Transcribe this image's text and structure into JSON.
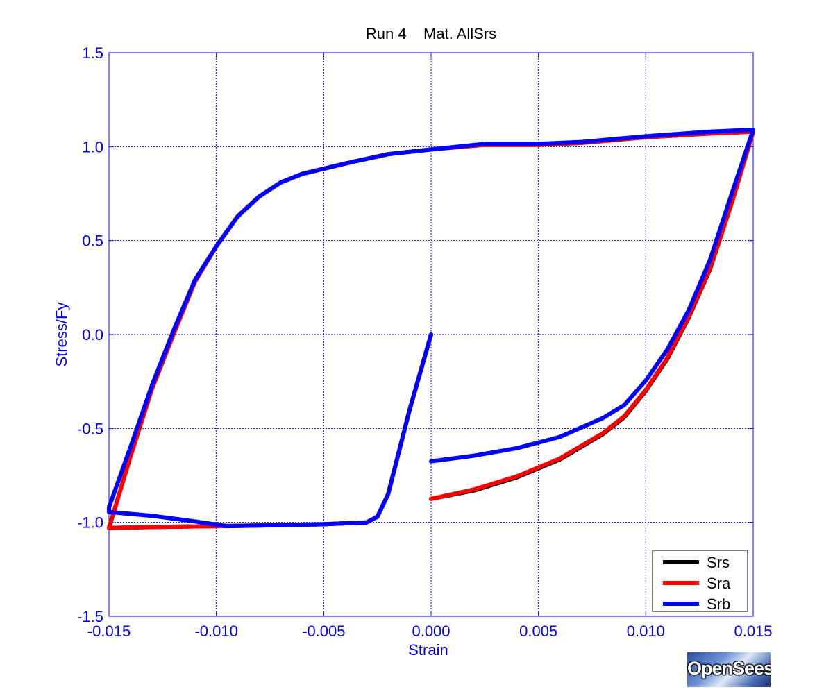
{
  "chart_data": {
    "type": "line",
    "title": "Run 4    Mat. AllSrs",
    "xlabel": "Strain",
    "ylabel": "Stress/Fy",
    "xlim": [
      -0.015,
      0.015
    ],
    "ylim": [
      -1.5,
      1.5
    ],
    "xticks": [
      -0.015,
      -0.01,
      -0.005,
      0.0,
      0.005,
      0.01,
      0.015
    ],
    "xtick_labels": [
      "-0.015",
      "-0.010",
      "-0.005",
      "0.000",
      "0.005",
      "0.010",
      "0.015"
    ],
    "yticks": [
      -1.5,
      -1.0,
      -0.5,
      0.0,
      0.5,
      1.0,
      1.5
    ],
    "ytick_labels": [
      "-1.5",
      "-1.0",
      "-0.5",
      "0.0",
      "0.5",
      "1.0",
      "1.5"
    ],
    "grid": true,
    "legend_position": "bottom-right",
    "colors": {
      "axis": "#0000ff",
      "grid": "#0000ff"
    },
    "series": [
      {
        "name": "Srs",
        "color": "#000000",
        "points": [
          [
            0.0,
            -0.875
          ],
          [
            0.002,
            -0.83
          ],
          [
            0.004,
            -0.76
          ],
          [
            0.006,
            -0.665
          ],
          [
            0.008,
            -0.53
          ],
          [
            0.009,
            -0.44
          ],
          [
            0.01,
            -0.3
          ],
          [
            0.011,
            -0.13
          ],
          [
            0.012,
            0.09
          ],
          [
            0.013,
            0.35
          ],
          [
            0.014,
            0.7
          ],
          [
            0.015,
            1.08
          ],
          [
            0.013,
            1.07
          ],
          [
            0.01,
            1.05
          ],
          [
            0.007,
            1.02
          ],
          [
            0.005,
            1.01
          ],
          [
            0.0025,
            1.01
          ],
          [
            0.0,
            0.985
          ],
          [
            -0.002,
            0.96
          ],
          [
            -0.004,
            0.91
          ],
          [
            -0.006,
            0.855
          ],
          [
            -0.007,
            0.81
          ],
          [
            -0.008,
            0.735
          ],
          [
            -0.009,
            0.63
          ],
          [
            -0.01,
            0.47
          ],
          [
            -0.011,
            0.28
          ],
          [
            -0.012,
            0.0
          ],
          [
            -0.013,
            -0.29
          ],
          [
            -0.014,
            -0.65
          ],
          [
            -0.015,
            -1.03
          ],
          [
            -0.013,
            -1.025
          ],
          [
            -0.01,
            -1.02
          ],
          [
            -0.007,
            -1.015
          ],
          [
            -0.005,
            -1.01
          ],
          [
            -0.003,
            -1.0
          ],
          [
            -0.0025,
            -0.97
          ],
          [
            -0.002,
            -0.85
          ],
          [
            -0.001,
            -0.4
          ],
          [
            0.0,
            0.0
          ]
        ]
      },
      {
        "name": "Sra",
        "color": "#ff0000",
        "points": [
          [
            0.0,
            -0.875
          ],
          [
            0.002,
            -0.825
          ],
          [
            0.004,
            -0.755
          ],
          [
            0.006,
            -0.66
          ],
          [
            0.008,
            -0.525
          ],
          [
            0.009,
            -0.435
          ],
          [
            0.01,
            -0.295
          ],
          [
            0.011,
            -0.125
          ],
          [
            0.012,
            0.095
          ],
          [
            0.013,
            0.355
          ],
          [
            0.014,
            0.7
          ],
          [
            0.015,
            1.08
          ],
          [
            0.013,
            1.07
          ],
          [
            0.01,
            1.05
          ],
          [
            0.007,
            1.02
          ],
          [
            0.005,
            1.01
          ],
          [
            0.0025,
            1.01
          ],
          [
            0.0,
            0.985
          ],
          [
            -0.002,
            0.96
          ],
          [
            -0.004,
            0.91
          ],
          [
            -0.006,
            0.855
          ],
          [
            -0.007,
            0.81
          ],
          [
            -0.008,
            0.735
          ],
          [
            -0.009,
            0.63
          ],
          [
            -0.01,
            0.47
          ],
          [
            -0.011,
            0.28
          ],
          [
            -0.012,
            0.0
          ],
          [
            -0.013,
            -0.29
          ],
          [
            -0.014,
            -0.65
          ],
          [
            -0.015,
            -1.03
          ],
          [
            -0.013,
            -1.025
          ],
          [
            -0.01,
            -1.02
          ],
          [
            -0.007,
            -1.015
          ],
          [
            -0.005,
            -1.01
          ],
          [
            -0.003,
            -1.0
          ],
          [
            -0.0025,
            -0.97
          ],
          [
            -0.002,
            -0.85
          ],
          [
            -0.001,
            -0.4
          ],
          [
            0.0,
            0.0
          ]
        ]
      },
      {
        "name": "Srb",
        "color": "#0000ff",
        "points": [
          [
            0.0,
            -0.675
          ],
          [
            0.002,
            -0.645
          ],
          [
            0.004,
            -0.605
          ],
          [
            0.006,
            -0.545
          ],
          [
            0.008,
            -0.445
          ],
          [
            0.009,
            -0.375
          ],
          [
            0.01,
            -0.245
          ],
          [
            0.011,
            -0.08
          ],
          [
            0.012,
            0.13
          ],
          [
            0.013,
            0.4
          ],
          [
            0.014,
            0.75
          ],
          [
            0.015,
            1.09
          ],
          [
            0.013,
            1.08
          ],
          [
            0.01,
            1.055
          ],
          [
            0.007,
            1.025
          ],
          [
            0.005,
            1.015
          ],
          [
            0.0025,
            1.015
          ],
          [
            0.0,
            0.985
          ],
          [
            -0.002,
            0.96
          ],
          [
            -0.004,
            0.91
          ],
          [
            -0.006,
            0.855
          ],
          [
            -0.007,
            0.81
          ],
          [
            -0.008,
            0.735
          ],
          [
            -0.009,
            0.63
          ],
          [
            -0.01,
            0.47
          ],
          [
            -0.011,
            0.29
          ],
          [
            -0.012,
            0.02
          ],
          [
            -0.013,
            -0.27
          ],
          [
            -0.014,
            -0.6
          ],
          [
            -0.015,
            -0.92
          ],
          [
            -0.015,
            -0.945
          ],
          [
            -0.013,
            -0.965
          ],
          [
            -0.011,
            -0.995
          ],
          [
            -0.0095,
            -1.02
          ],
          [
            -0.007,
            -1.015
          ],
          [
            -0.005,
            -1.01
          ],
          [
            -0.003,
            -1.0
          ],
          [
            -0.0025,
            -0.97
          ],
          [
            -0.002,
            -0.85
          ],
          [
            -0.001,
            -0.4
          ],
          [
            0.0,
            0.0
          ]
        ]
      }
    ]
  },
  "logo": {
    "text": "OpenSees",
    "name": "opensees-logo"
  }
}
